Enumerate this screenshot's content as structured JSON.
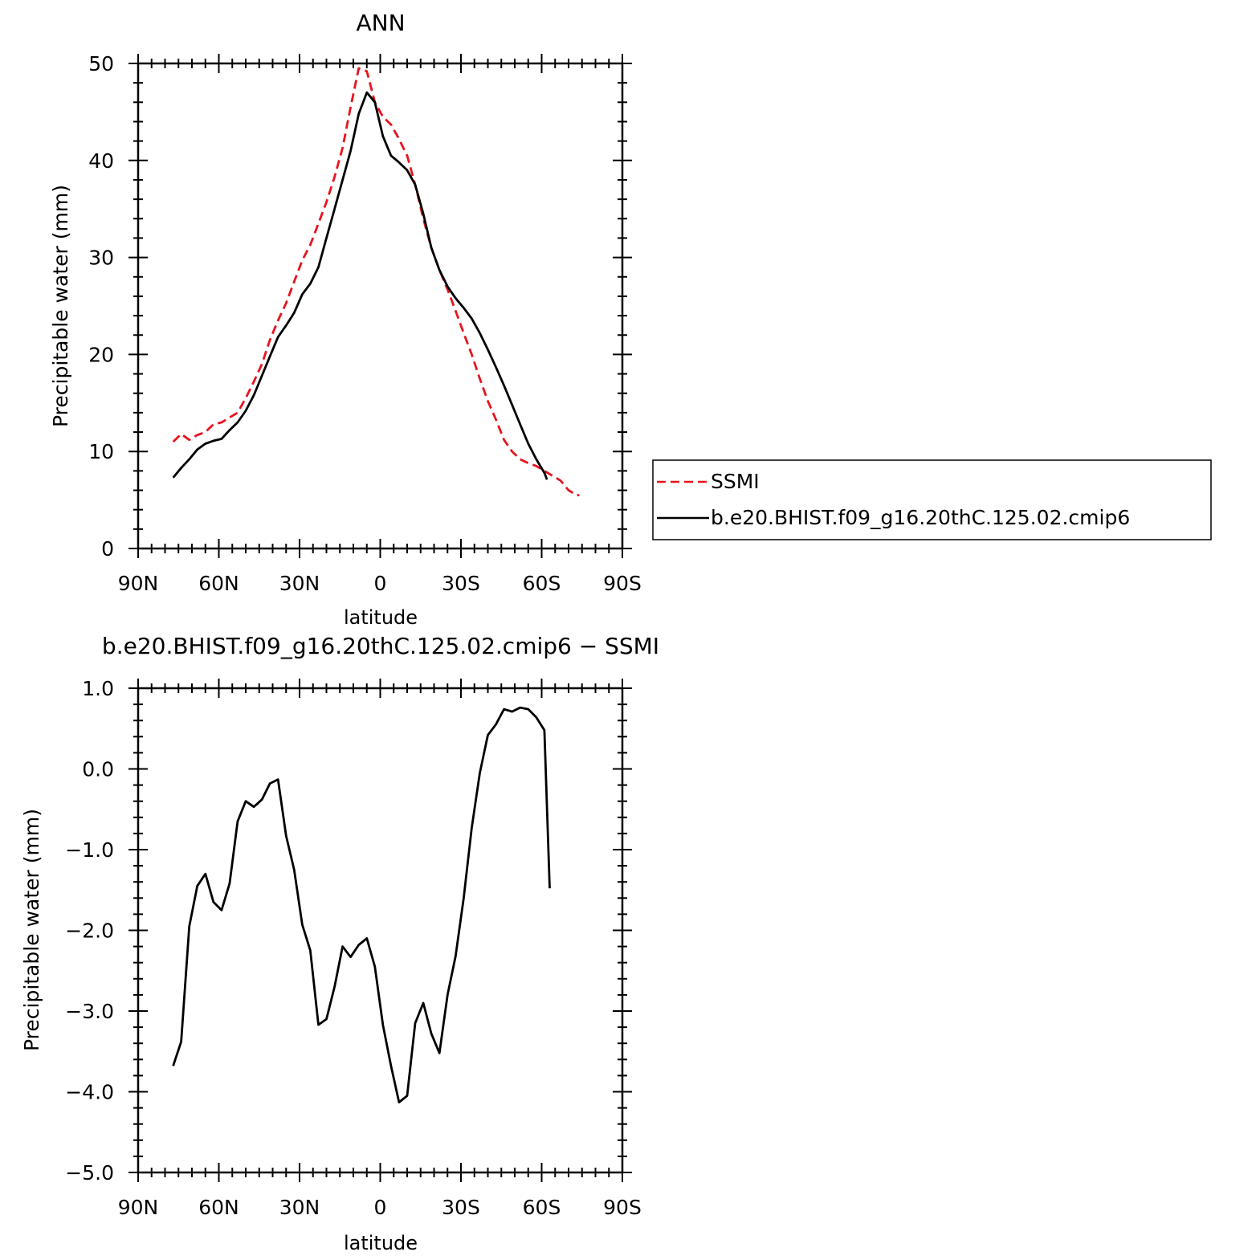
{
  "chart_data": [
    {
      "type": "line",
      "title": "ANN",
      "xlabel": "latitude",
      "ylabel": "Precipitable water (mm)",
      "xlim": [
        90,
        -90
      ],
      "ylim": [
        0,
        50
      ],
      "xticks": [
        90,
        60,
        30,
        0,
        -30,
        -60,
        -90
      ],
      "xtick_labels": [
        "90N",
        "60N",
        "30N",
        "0",
        "30S",
        "60S",
        "90S"
      ],
      "yticks": [
        0,
        10,
        20,
        30,
        40,
        50
      ],
      "ytick_labels": [
        "0",
        "10",
        "20",
        "30",
        "40",
        "50"
      ],
      "legend_position": "right",
      "series": [
        {
          "name": "SSMI",
          "color": "#e8141e",
          "dash": "dashed",
          "x": [
            77,
            74,
            71,
            68,
            65,
            62,
            59,
            56,
            53,
            50,
            47,
            44,
            41,
            38,
            35,
            32,
            29,
            26,
            23,
            20,
            17,
            14,
            11,
            8,
            5,
            2,
            -1,
            -4,
            -7,
            -10,
            -13,
            -16,
            -19,
            -22,
            -25,
            -28,
            -31,
            -34,
            -37,
            -40,
            -43,
            -46,
            -49,
            -52,
            -55,
            -58,
            -61,
            -64,
            -67,
            -70,
            -73,
            -74
          ],
          "y": [
            11.0,
            11.8,
            11.2,
            11.7,
            12.0,
            12.8,
            13.0,
            13.5,
            14.0,
            15.5,
            17.2,
            19.0,
            21.5,
            23.5,
            25.3,
            27.5,
            29.7,
            31.3,
            33.5,
            35.7,
            38.3,
            41.3,
            45.5,
            49.5,
            49.2,
            46.0,
            44.5,
            43.7,
            42.2,
            40.5,
            37.5,
            34.0,
            31.0,
            28.7,
            26.7,
            24.5,
            22.2,
            20.0,
            17.5,
            15.2,
            13.3,
            11.2,
            10.0,
            9.2,
            8.8,
            8.5,
            8.0,
            7.5,
            7.0,
            6.0,
            5.5,
            5.5
          ]
        },
        {
          "name": "b.e20.BHIST.f09_g16.20thC.125.02.cmip6",
          "color": "#000000",
          "dash": "solid",
          "x": [
            77,
            74,
            71,
            68,
            65,
            62,
            59,
            56,
            53,
            50,
            47,
            44,
            41,
            38,
            35,
            32,
            29,
            26,
            23,
            20,
            17,
            14,
            11,
            8,
            5,
            2,
            -1,
            -4,
            -7,
            -10,
            -13,
            -16,
            -19,
            -22,
            -25,
            -28,
            -31,
            -34,
            -37,
            -40,
            -43,
            -46,
            -49,
            -52,
            -55,
            -58,
            -61,
            -62
          ],
          "y": [
            7.3,
            8.3,
            9.2,
            10.2,
            10.8,
            11.1,
            11.3,
            12.2,
            13.0,
            14.2,
            15.8,
            17.8,
            19.8,
            21.8,
            23.0,
            24.3,
            26.2,
            27.3,
            29.0,
            32.0,
            35.0,
            38.0,
            41.0,
            44.8,
            47.0,
            46.0,
            42.5,
            40.5,
            39.8,
            39.0,
            37.5,
            34.5,
            31.0,
            28.7,
            27.0,
            25.8,
            24.8,
            23.7,
            22.2,
            20.5,
            18.7,
            16.8,
            14.8,
            12.8,
            10.8,
            9.2,
            7.8,
            7.1
          ]
        }
      ]
    },
    {
      "type": "line",
      "title": "b.e20.BHIST.f09_g16.20thC.125.02.cmip6 − SSMI",
      "xlabel": "latitude",
      "ylabel": "Precipitable water (mm)",
      "xlim": [
        90,
        -90
      ],
      "ylim": [
        -5,
        1
      ],
      "xticks": [
        90,
        60,
        30,
        0,
        -30,
        -60,
        -90
      ],
      "xtick_labels": [
        "90N",
        "60N",
        "30N",
        "0",
        "30S",
        "60S",
        "90S"
      ],
      "yticks": [
        1,
        0,
        -1,
        -2,
        -3,
        -4,
        -5
      ],
      "ytick_labels": [
        "1.0",
        "0.0",
        "−1.0",
        "−2.0",
        "−3.0",
        "−4.0",
        "−5.0"
      ],
      "series": [
        {
          "color": "#000000",
          "dash": "solid",
          "x": [
            77,
            74,
            71,
            68,
            65,
            62,
            59,
            56,
            53,
            50,
            47,
            44,
            41,
            38,
            35,
            32,
            29,
            26,
            23,
            20,
            17,
            14,
            11,
            8,
            5,
            2,
            -1,
            -4,
            -7,
            -10,
            -13,
            -16,
            -19,
            -22,
            -25,
            -28,
            -31,
            -34,
            -37,
            -40,
            -43,
            -46,
            -49,
            -52,
            -55,
            -58,
            -61,
            -63
          ],
          "y": [
            -3.68,
            -3.38,
            -1.95,
            -1.45,
            -1.3,
            -1.65,
            -1.75,
            -1.42,
            -0.65,
            -0.4,
            -0.47,
            -0.38,
            -0.18,
            -0.13,
            -0.83,
            -1.25,
            -1.93,
            -2.25,
            -3.17,
            -3.1,
            -2.7,
            -2.2,
            -2.33,
            -2.18,
            -2.1,
            -2.45,
            -3.17,
            -3.68,
            -4.13,
            -4.05,
            -3.15,
            -2.9,
            -3.28,
            -3.52,
            -2.8,
            -2.32,
            -1.6,
            -0.73,
            -0.05,
            0.42,
            0.55,
            0.74,
            0.71,
            0.76,
            0.74,
            0.64,
            0.48,
            -1.48
          ]
        }
      ]
    }
  ]
}
